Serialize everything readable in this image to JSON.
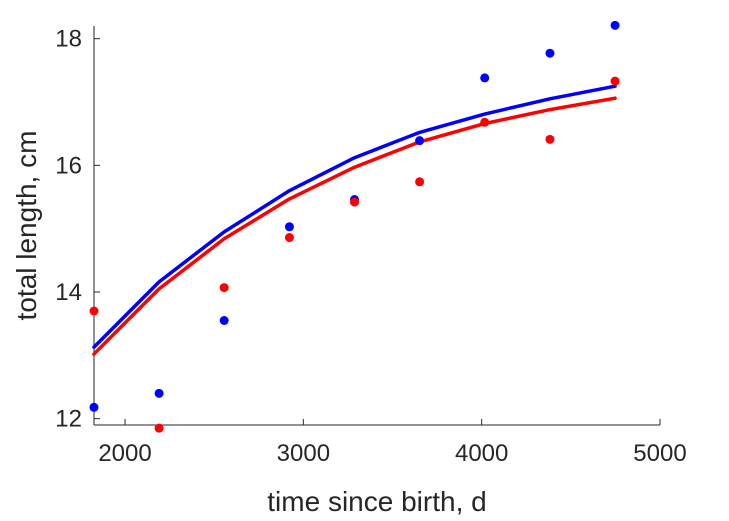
{
  "chart_data": {
    "type": "scatter",
    "title": "",
    "xlabel": "time since birth, d",
    "ylabel": "total length, cm",
    "xlim": [
      1826,
      5000
    ],
    "ylim": [
      11.9,
      18.2
    ],
    "xticks": [
      2000,
      3000,
      4000,
      5000
    ],
    "yticks": [
      12,
      14,
      16,
      18
    ],
    "grid": false,
    "legend": "none",
    "series": [
      {
        "kind": "points",
        "color": "#0000ff",
        "x": [
          1826,
          2191,
          2556,
          2922,
          3287,
          3652,
          4017,
          4383,
          4748
        ],
        "y": [
          12.18,
          12.4,
          13.55,
          15.03,
          15.46,
          16.39,
          17.38,
          17.77,
          18.21
        ]
      },
      {
        "kind": "points",
        "color": "#ff0000",
        "x": [
          1826,
          2191,
          2556,
          2922,
          3287,
          3652,
          4017,
          4383,
          4748
        ],
        "y": [
          13.7,
          11.85,
          14.07,
          14.86,
          15.42,
          15.74,
          16.68,
          16.41,
          17.33
        ]
      },
      {
        "kind": "line",
        "color": "#0000ff",
        "x": [
          1826,
          2191,
          2556,
          2922,
          3287,
          3652,
          4017,
          4383,
          4748
        ],
        "y": [
          13.13,
          14.16,
          14.95,
          15.6,
          16.12,
          16.52,
          16.81,
          17.05,
          17.25
        ]
      },
      {
        "kind": "line",
        "color": "#ff0000",
        "x": [
          1826,
          2191,
          2556,
          2922,
          3287,
          3652,
          4017,
          4383,
          4748
        ],
        "y": [
          13.02,
          14.05,
          14.84,
          15.47,
          15.97,
          16.37,
          16.66,
          16.88,
          17.06
        ]
      }
    ]
  }
}
